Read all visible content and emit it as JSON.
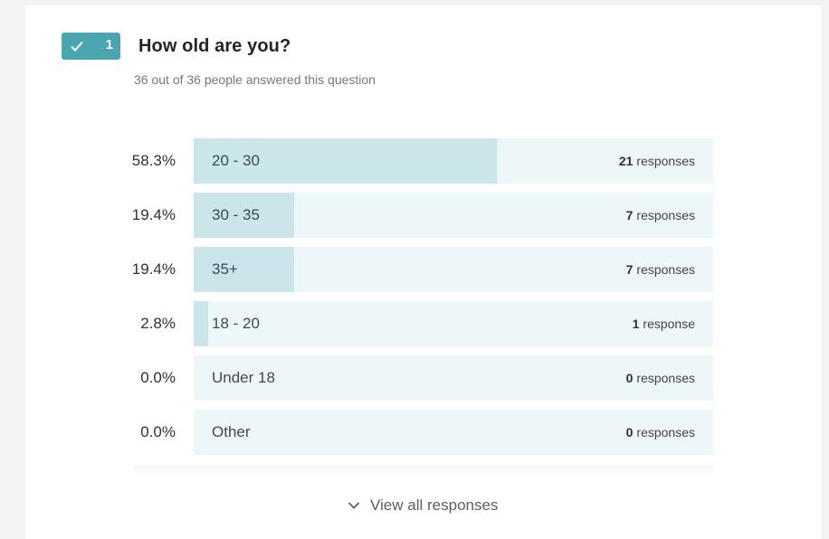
{
  "question": {
    "number": "1",
    "title": "How old are you?",
    "subtitle": "36 out of 36 people answered this question",
    "badge_color": "#4aa5b0"
  },
  "results": [
    {
      "percent": "58.3%",
      "share": 0.583,
      "label": "20 - 30",
      "count": "21",
      "unit": "responses"
    },
    {
      "percent": "19.4%",
      "share": 0.194,
      "label": "30 - 35",
      "count": "7",
      "unit": "responses"
    },
    {
      "percent": "19.4%",
      "share": 0.194,
      "label": "35+",
      "count": "7",
      "unit": "responses"
    },
    {
      "percent": "2.8%",
      "share": 0.028,
      "label": "18 - 20",
      "count": "1",
      "unit": "response"
    },
    {
      "percent": "0.0%",
      "share": 0.0,
      "label": "Under 18",
      "count": "0",
      "unit": "responses"
    },
    {
      "percent": "0.0%",
      "share": 0.0,
      "label": "Other",
      "count": "0",
      "unit": "responses"
    }
  ],
  "footer": {
    "view_all_label": "View all responses",
    "icon": "chevron-down-icon"
  },
  "colors": {
    "bar_track": "#edf6f8",
    "bar_fill": "#cae6eb"
  }
}
